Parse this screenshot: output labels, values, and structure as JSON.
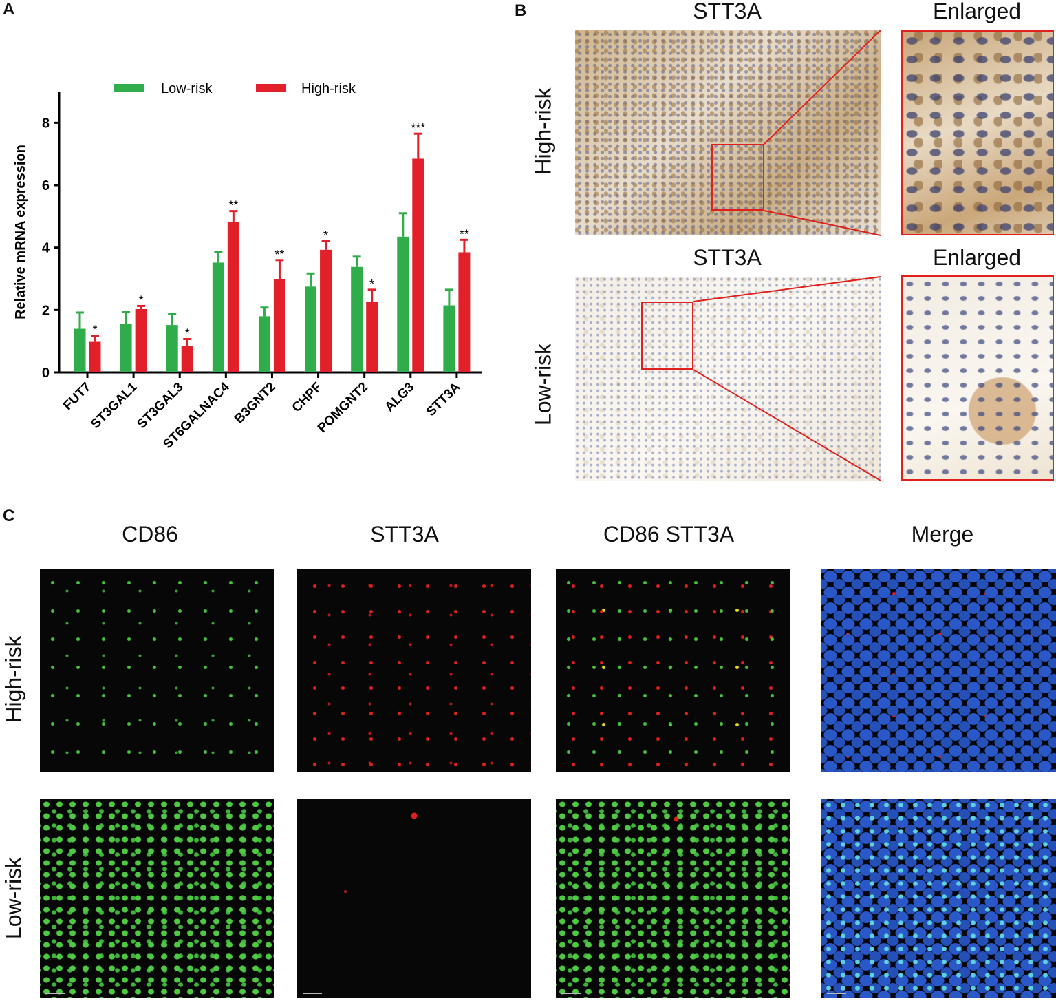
{
  "panels": {
    "a": {
      "letter": "A"
    },
    "b": {
      "letter": "B",
      "col_headers": [
        "STT3A",
        "Enlarged"
      ],
      "row_labels": [
        "High-risk",
        "Low-risk"
      ]
    },
    "c": {
      "letter": "C",
      "col_headers": [
        "CD86",
        "STT3A",
        "CD86 STT3A",
        "Merge"
      ],
      "row_labels": [
        "High-risk",
        "Low-risk"
      ]
    }
  },
  "colors": {
    "low": "#2fad4a",
    "high": "#e2202a",
    "box": "#e0201c"
  },
  "chart_data": {
    "type": "bar",
    "ylabel": "Relative mRNA expression",
    "xlabel": "",
    "ylim": [
      0,
      9
    ],
    "yticks": [
      0,
      2,
      4,
      6,
      8
    ],
    "categories": [
      "FUT7",
      "ST3GAL1",
      "ST3GAL3",
      "ST6GALNAC4",
      "B3GNT2",
      "CHPF",
      "POMGNT2",
      "ALG3",
      "STT3A"
    ],
    "series": [
      {
        "name": "Low-risk",
        "values": [
          1.4,
          1.55,
          1.52,
          3.52,
          1.8,
          2.75,
          3.38,
          4.35,
          2.15
        ],
        "errors": [
          0.52,
          0.38,
          0.35,
          0.33,
          0.28,
          0.42,
          0.33,
          0.75,
          0.5
        ]
      },
      {
        "name": "High-risk",
        "values": [
          0.98,
          2.03,
          0.85,
          4.82,
          3.0,
          3.93,
          2.25,
          6.85,
          3.85
        ],
        "errors": [
          0.2,
          0.1,
          0.22,
          0.35,
          0.6,
          0.28,
          0.4,
          0.8,
          0.4
        ]
      }
    ],
    "significance": [
      "*",
      "*",
      "*",
      "**",
      "**",
      "*",
      "*",
      "***",
      "**"
    ],
    "legend_position": "top"
  }
}
